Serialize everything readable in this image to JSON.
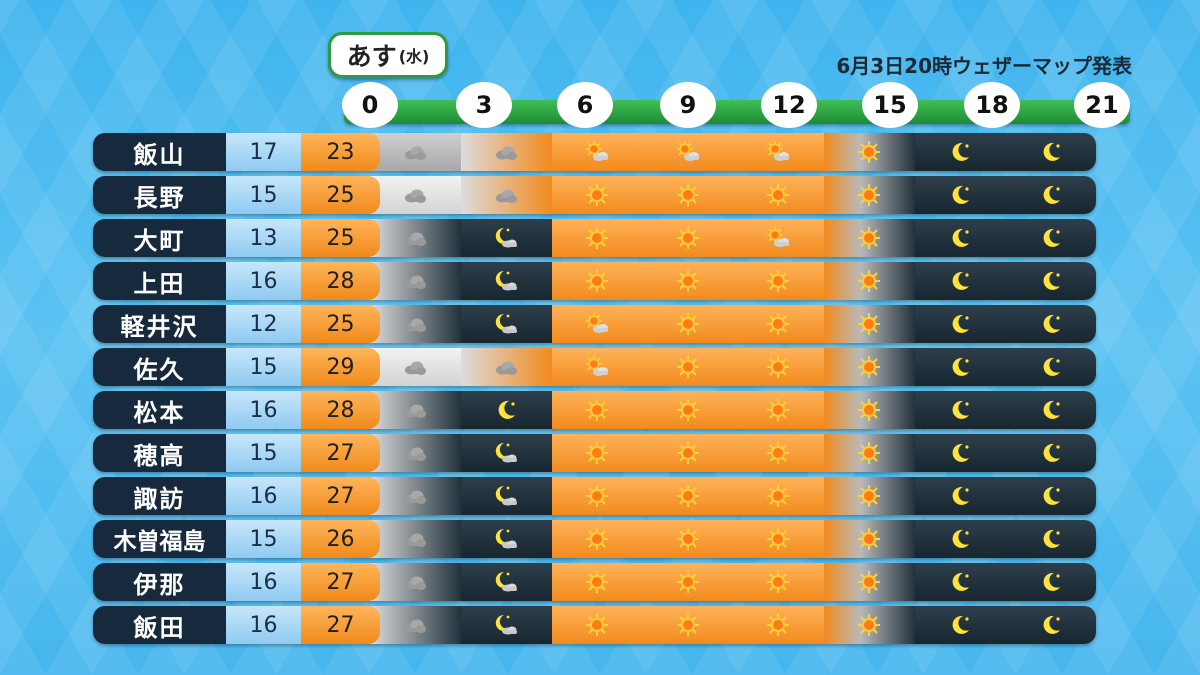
{
  "header": {
    "day_main": "あす",
    "day_sub": "(水)",
    "announcement": "6月3日20時ウェザーマップ発表"
  },
  "hours": [
    "0",
    "3",
    "6",
    "9",
    "12",
    "15",
    "18",
    "21"
  ],
  "rows": [
    {
      "city": "飯山",
      "min": "17",
      "max": "23",
      "w": [
        "cloudy-dark",
        "cloudy",
        "suncloud",
        "suncloud",
        "suncloud",
        "sunny",
        "night",
        "night"
      ]
    },
    {
      "city": "長野",
      "min": "15",
      "max": "25",
      "w": [
        "cloudy",
        "cloudy",
        "sunny",
        "sunny",
        "sunny",
        "sunny",
        "night",
        "night"
      ]
    },
    {
      "city": "大町",
      "min": "13",
      "max": "25",
      "w": [
        "cloudy",
        "nightcloud",
        "sunny",
        "sunny",
        "suncloud",
        "sunny",
        "night",
        "night"
      ]
    },
    {
      "city": "上田",
      "min": "16",
      "max": "28",
      "w": [
        "cloudy",
        "nightcloud",
        "sunny",
        "sunny",
        "sunny",
        "sunny",
        "night",
        "night"
      ]
    },
    {
      "city": "軽井沢",
      "min": "12",
      "max": "25",
      "w": [
        "cloudy",
        "nightcloud",
        "suncloud",
        "sunny",
        "sunny",
        "sunny",
        "night",
        "night"
      ]
    },
    {
      "city": "佐久",
      "min": "15",
      "max": "29",
      "w": [
        "cloudy",
        "cloudy",
        "suncloud",
        "sunny",
        "sunny",
        "sunny",
        "night",
        "night"
      ]
    },
    {
      "city": "松本",
      "min": "16",
      "max": "28",
      "w": [
        "cloudy",
        "night",
        "sunny",
        "sunny",
        "sunny",
        "sunny",
        "night",
        "night"
      ]
    },
    {
      "city": "穂高",
      "min": "15",
      "max": "27",
      "w": [
        "cloudy",
        "nightcloud",
        "sunny",
        "sunny",
        "sunny",
        "sunny",
        "night",
        "night"
      ]
    },
    {
      "city": "諏訪",
      "min": "16",
      "max": "27",
      "w": [
        "cloudy",
        "nightcloud",
        "sunny",
        "sunny",
        "sunny",
        "sunny",
        "night",
        "night"
      ]
    },
    {
      "city": "木曽福島",
      "min": "15",
      "max": "26",
      "w": [
        "cloudy",
        "nightcloud",
        "sunny",
        "sunny",
        "sunny",
        "sunny",
        "night",
        "night"
      ]
    },
    {
      "city": "伊那",
      "min": "16",
      "max": "27",
      "w": [
        "cloudy",
        "nightcloud",
        "sunny",
        "sunny",
        "sunny",
        "sunny",
        "night",
        "night"
      ]
    },
    {
      "city": "飯田",
      "min": "16",
      "max": "27",
      "w": [
        "cloudy",
        "nightcloud",
        "sunny",
        "sunny",
        "sunny",
        "sunny",
        "night",
        "night"
      ]
    }
  ],
  "colors": {
    "sunny": "#f28a1d",
    "night": "#1b2a33",
    "cloudy": "#d8d8d8",
    "city_bg": "#17293d",
    "time_bar": "#2a9d3d"
  }
}
